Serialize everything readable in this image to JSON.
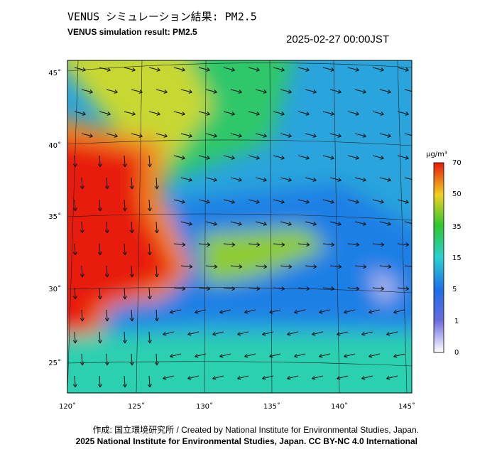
{
  "header": {
    "title": "VENUS シミュレーション結果: PM2.5",
    "subtitle": "VENUS simulation result: PM2.5",
    "timestamp": "2025-02-27 00:00JST"
  },
  "map": {
    "lat_labels": [
      "45˚",
      "40˚",
      "35˚",
      "30˚",
      "25˚"
    ],
    "lon_labels": [
      "120˚",
      "125˚",
      "130˚",
      "135˚",
      "140˚",
      "145˚"
    ]
  },
  "colorbar": {
    "unit": "μg/m³",
    "labels": [
      "70",
      "50",
      "35",
      "15",
      "5",
      "1",
      "0"
    ]
  },
  "footer": {
    "credit": "作成: 国立環境研究所 / Created by National Institute for Environmental Studies, Japan.",
    "copyright": "2025 National Institute for Environmental Studies, Japan. CC BY-NC 4.0 International"
  }
}
